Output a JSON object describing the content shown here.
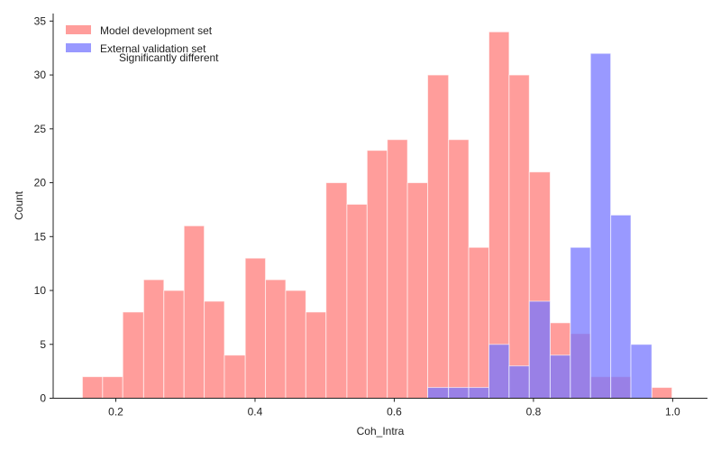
{
  "chart_data": {
    "type": "bar",
    "subtype": "overlaid-histogram",
    "title": "",
    "xlabel": "Coh_Intra",
    "ylabel": "Count",
    "xlim": [
      0.11,
      1.05
    ],
    "ylim": [
      0,
      35.7
    ],
    "xticks": [
      0.2,
      0.4,
      0.6,
      0.8,
      1.0
    ],
    "xtick_labels": [
      "0.2",
      "0.4",
      "0.6",
      "0.8",
      "1.0"
    ],
    "yticks": [
      0,
      5,
      10,
      15,
      20,
      25,
      30,
      35
    ],
    "ytick_labels": [
      "0",
      "5",
      "10",
      "15",
      "20",
      "25",
      "30",
      "35"
    ],
    "grid": false,
    "legend_position": "top-left",
    "annotation": "Significantly different",
    "series": [
      {
        "name": "Model development set",
        "color": "#ff9896",
        "bins": [
          {
            "x0": 0.152,
            "x1": 0.181,
            "count": 2
          },
          {
            "x0": 0.181,
            "x1": 0.21,
            "count": 2
          },
          {
            "x0": 0.21,
            "x1": 0.24,
            "count": 8
          },
          {
            "x0": 0.24,
            "x1": 0.269,
            "count": 11
          },
          {
            "x0": 0.269,
            "x1": 0.298,
            "count": 10
          },
          {
            "x0": 0.298,
            "x1": 0.327,
            "count": 16
          },
          {
            "x0": 0.327,
            "x1": 0.356,
            "count": 9
          },
          {
            "x0": 0.356,
            "x1": 0.386,
            "count": 4
          },
          {
            "x0": 0.386,
            "x1": 0.415,
            "count": 13
          },
          {
            "x0": 0.415,
            "x1": 0.444,
            "count": 11
          },
          {
            "x0": 0.444,
            "x1": 0.473,
            "count": 10
          },
          {
            "x0": 0.473,
            "x1": 0.502,
            "count": 8
          },
          {
            "x0": 0.502,
            "x1": 0.532,
            "count": 20
          },
          {
            "x0": 0.532,
            "x1": 0.561,
            "count": 18
          },
          {
            "x0": 0.561,
            "x1": 0.59,
            "count": 23
          },
          {
            "x0": 0.59,
            "x1": 0.619,
            "count": 24
          },
          {
            "x0": 0.619,
            "x1": 0.648,
            "count": 20
          },
          {
            "x0": 0.648,
            "x1": 0.678,
            "count": 30
          },
          {
            "x0": 0.678,
            "x1": 0.707,
            "count": 24
          },
          {
            "x0": 0.707,
            "x1": 0.736,
            "count": 14
          },
          {
            "x0": 0.736,
            "x1": 0.765,
            "count": 34
          },
          {
            "x0": 0.765,
            "x1": 0.794,
            "count": 30
          },
          {
            "x0": 0.794,
            "x1": 0.824,
            "count": 21
          },
          {
            "x0": 0.824,
            "x1": 0.853,
            "count": 7
          },
          {
            "x0": 0.853,
            "x1": 0.882,
            "count": 6
          },
          {
            "x0": 0.882,
            "x1": 0.911,
            "count": 2
          },
          {
            "x0": 0.911,
            "x1": 0.94,
            "count": 2
          },
          {
            "x0": 0.94,
            "x1": 0.97,
            "count": 0
          },
          {
            "x0": 0.97,
            "x1": 0.999,
            "count": 1
          }
        ]
      },
      {
        "name": "External validation set",
        "color": "#7777ff",
        "bins": [
          {
            "x0": 0.648,
            "x1": 0.678,
            "count": 1
          },
          {
            "x0": 0.678,
            "x1": 0.707,
            "count": 1
          },
          {
            "x0": 0.707,
            "x1": 0.736,
            "count": 1
          },
          {
            "x0": 0.736,
            "x1": 0.765,
            "count": 5
          },
          {
            "x0": 0.765,
            "x1": 0.794,
            "count": 3
          },
          {
            "x0": 0.794,
            "x1": 0.824,
            "count": 9
          },
          {
            "x0": 0.824,
            "x1": 0.853,
            "count": 4
          },
          {
            "x0": 0.853,
            "x1": 0.882,
            "count": 14
          },
          {
            "x0": 0.882,
            "x1": 0.911,
            "count": 32
          },
          {
            "x0": 0.911,
            "x1": 0.94,
            "count": 17
          },
          {
            "x0": 0.94,
            "x1": 0.97,
            "count": 5
          }
        ]
      }
    ]
  }
}
